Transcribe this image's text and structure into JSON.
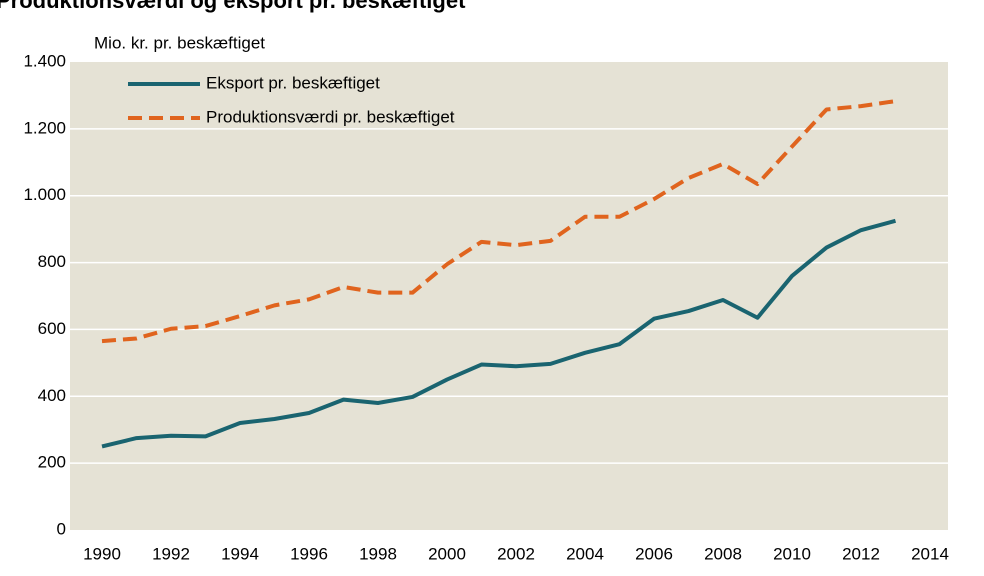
{
  "chart_data": {
    "type": "line",
    "title": "Produktionsværdi og eksport pr. beskæftiget",
    "y_label": "Mio. kr. pr. beskæftiget",
    "x": [
      1990,
      1991,
      1992,
      1993,
      1994,
      1995,
      1996,
      1997,
      1998,
      1999,
      2000,
      2001,
      2002,
      2003,
      2004,
      2005,
      2006,
      2007,
      2008,
      2009,
      2010,
      2011,
      2012,
      2013
    ],
    "series": [
      {
        "name": "Eksport pr. beskæftiget",
        "color": "#1a6470",
        "dash": false,
        "values": [
          250,
          275,
          282,
          280,
          320,
          332,
          350,
          390,
          380,
          398,
          450,
          495,
          490,
          497,
          530,
          556,
          632,
          655,
          688,
          635,
          760,
          845,
          897,
          925
        ]
      },
      {
        "name": "Produktionsværdi pr. beskæftiget",
        "color": "#e0641e",
        "dash": true,
        "values": [
          565,
          573,
          602,
          610,
          640,
          672,
          690,
          727,
          710,
          710,
          795,
          862,
          852,
          865,
          937,
          937,
          990,
          1053,
          1095,
          1035,
          1147,
          1258,
          1268,
          1283
        ]
      }
    ],
    "xlim": [
      1990,
      2014
    ],
    "xticks": [
      1990,
      1992,
      1994,
      1996,
      1998,
      2000,
      2002,
      2004,
      2006,
      2008,
      2010,
      2012,
      2014
    ],
    "ylim": [
      0,
      1400
    ],
    "yticks": [
      0,
      200,
      400,
      600,
      800,
      {
        "value": 1000,
        "label": "1.000"
      },
      {
        "value": 1200,
        "label": "1.200"
      },
      {
        "value": 1400,
        "label": "1.400"
      }
    ],
    "grid": true,
    "legend": "upper left"
  }
}
